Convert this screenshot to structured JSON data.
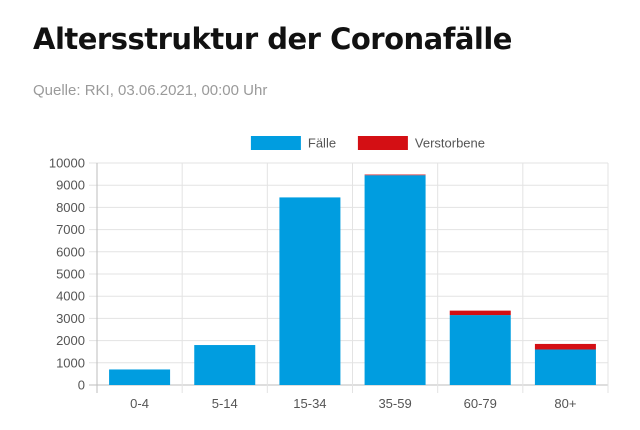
{
  "header": {
    "title": "Altersstruktur der Coronafälle",
    "source": "Quelle: RKI, 03.06.2021, 00:00 Uhr"
  },
  "chart_data": {
    "type": "bar",
    "stacked": true,
    "title": "Altersstruktur der Coronafälle",
    "subtitle": "Quelle: RKI, 03.06.2021, 00:00 Uhr",
    "categories": [
      "0-4",
      "5-14",
      "15-34",
      "35-59",
      "60-79",
      "80+"
    ],
    "series": [
      {
        "name": "Fälle",
        "color": "#009de0",
        "values": [
          700,
          1800,
          8450,
          9450,
          3150,
          1600
        ]
      },
      {
        "name": "Verstorbene",
        "color": "#d40f14",
        "values": [
          0,
          0,
          0,
          30,
          200,
          250
        ]
      }
    ],
    "yticks": [
      "0",
      "1000",
      "2000",
      "3000",
      "4000",
      "5000",
      "6000",
      "7000",
      "8000",
      "9000",
      "10000"
    ],
    "ylim": [
      0,
      10000
    ],
    "grid": true,
    "legend": "top-center"
  }
}
